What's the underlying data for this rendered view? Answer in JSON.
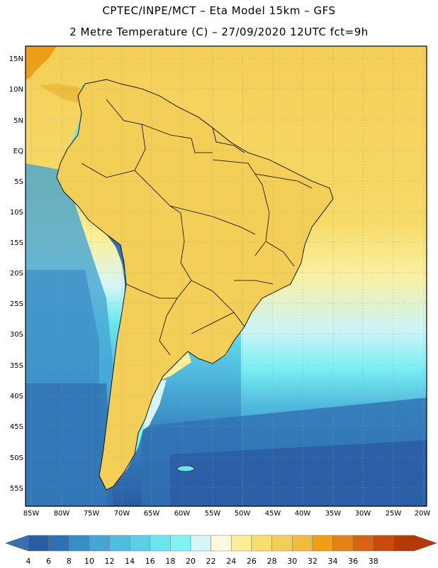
{
  "title_line1": "CPTEC/INPE/MCT –  Eta Model 15km – GFS",
  "title_line2": "2 Metre Temperature (C) – 27/09/2020 12UTC fct=9h",
  "lat_labels": [
    "15N",
    "10N",
    "5N",
    "EQ",
    "5S",
    "10S",
    "15S",
    "20S",
    "25S",
    "30S",
    "35S",
    "40S",
    "45S",
    "50S",
    "55S"
  ],
  "lon_labels": [
    "85W",
    "80W",
    "75W",
    "70W",
    "65W",
    "60W",
    "55W",
    "50W",
    "45W",
    "40W",
    "35W",
    "30W",
    "25W",
    "20W"
  ],
  "colorbar": {
    "levels": [
      "4",
      "6",
      "8",
      "10",
      "12",
      "14",
      "16",
      "18",
      "20",
      "22",
      "24",
      "26",
      "28",
      "30",
      "32",
      "34",
      "36",
      "38"
    ],
    "colors": [
      "#2a5ca3",
      "#2f71b3",
      "#3a8cc4",
      "#45a5d3",
      "#52bedf",
      "#5ccfe6",
      "#6ae6ee",
      "#7ef5f5",
      "#d7f6fa",
      "#fdf9e0",
      "#fbf09a",
      "#f9de6e",
      "#f4cf57",
      "#efbd3d",
      "#ef9f16",
      "#e58218",
      "#d76410",
      "#c94a0a",
      "#b53a07"
    ],
    "under_color": "#3a6fb3",
    "over_color": "#b53a07"
  },
  "colors": {
    "ocean_north": "#f4cf57",
    "ocean_tropic": "#f6d967",
    "ocean_south_deep": "#2f6cb0",
    "land_hot": "#e58218"
  }
}
